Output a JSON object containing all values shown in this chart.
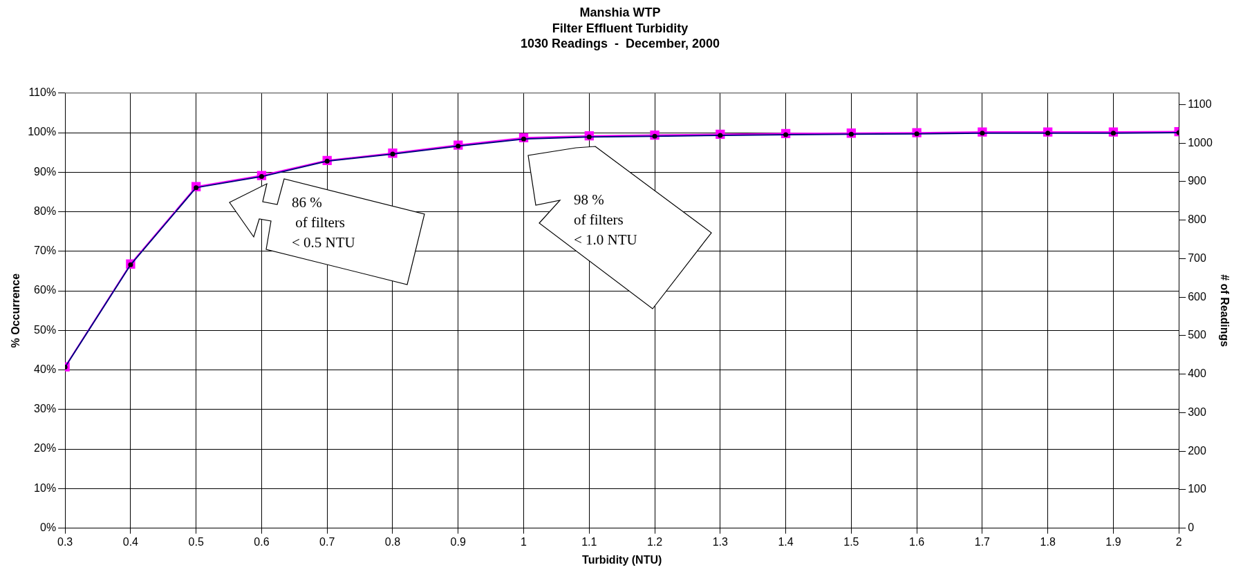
{
  "chart_data": {
    "type": "line",
    "title": "Manshia WTP",
    "subtitle": "Filter Effluent Turbidity\n1030 Readings  -  December, 2000",
    "xlabel": "Turbidity (NTU)",
    "ylabel": "% Occurrence",
    "y2label": "# of Readings",
    "x": [
      0.3,
      0.4,
      0.5,
      0.6,
      0.7,
      0.8,
      0.9,
      1,
      1.1,
      1.2,
      1.3,
      1.4,
      1.5,
      1.6,
      1.7,
      1.8,
      1.9,
      2
    ],
    "series": [
      {
        "color": "#000080",
        "marker": "circle",
        "values": [
          40.7,
          66.6,
          86.1,
          88.9,
          92.8,
          94.6,
          96.6,
          98.4,
          98.9,
          99.1,
          99.3,
          99.5,
          99.6,
          99.7,
          99.9,
          99.9,
          99.9,
          100
        ]
      },
      {
        "color": "#ff00ff",
        "marker": "square",
        "axis": "y2",
        "values": [
          419,
          686,
          887,
          916,
          955,
          974,
          995,
          1014,
          1019,
          1021,
          1023,
          1025,
          1026,
          1027,
          1029,
          1029,
          1029,
          1030
        ]
      }
    ],
    "xlim": [
      0.3,
      2
    ],
    "xticks": [
      0.3,
      0.4,
      0.5,
      0.6,
      0.7,
      0.8,
      0.9,
      1,
      1.1,
      1.2,
      1.3,
      1.4,
      1.5,
      1.6,
      1.7,
      1.8,
      1.9,
      2
    ],
    "ylim": [
      0,
      110
    ],
    "yticks": [
      {
        "value": 0,
        "label": "0%"
      },
      {
        "value": 10,
        "label": "10%"
      },
      {
        "value": 20,
        "label": "20%"
      },
      {
        "value": 30,
        "label": "30%"
      },
      {
        "value": 40,
        "label": "40%"
      },
      {
        "value": 50,
        "label": "50%"
      },
      {
        "value": 60,
        "label": "60%"
      },
      {
        "value": 70,
        "label": "70%"
      },
      {
        "value": 80,
        "label": "80%"
      },
      {
        "value": 90,
        "label": "90%"
      },
      {
        "value": 100,
        "label": "100%"
      },
      {
        "value": 110,
        "label": "110%"
      }
    ],
    "y2lim": [
      0,
      1130
    ],
    "y2ticks": [
      0,
      100,
      200,
      300,
      400,
      500,
      600,
      700,
      800,
      900,
      1000,
      1100
    ],
    "grid": true,
    "legend": false,
    "annotations": [
      "86 %\n of filters\n< 0.5 NTU",
      "98 %\nof filters\n< 1.0 NTU"
    ]
  }
}
